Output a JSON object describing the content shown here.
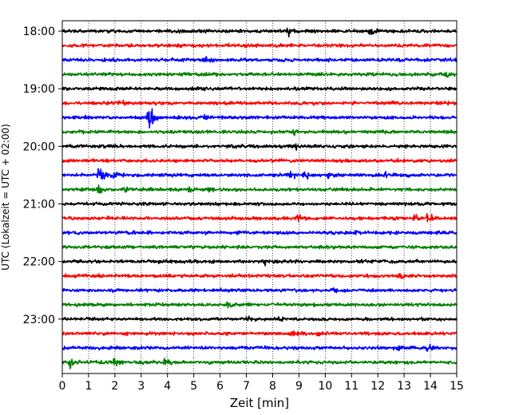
{
  "chart_data": {
    "type": "line",
    "title": "",
    "xlabel": "Zeit  [min]",
    "ylabel": "UTC (Lokalzeit = UTC + 02:00)",
    "xlim": [
      0,
      15
    ],
    "x_ticks": [
      "0",
      "1",
      "2",
      "3",
      "4",
      "5",
      "6",
      "7",
      "8",
      "9",
      "10",
      "11",
      "12",
      "13",
      "14",
      "15"
    ],
    "y_tick_labels": [
      "18:00",
      "19:00",
      "20:00",
      "21:00",
      "22:00",
      "23:00"
    ],
    "grid": "vertical dotted",
    "trace_interval_minutes": 15,
    "start_time": "18:00",
    "trace_colors": [
      "#000000",
      "#ff0000",
      "#0000ff",
      "#008000"
    ],
    "traces": [
      {
        "start": "18:00",
        "color": "#000000",
        "amplitude": 0.35,
        "events": [
          {
            "t": 8.6,
            "amp": 1.2
          },
          {
            "t": 11.7,
            "amp": 1.0
          }
        ]
      },
      {
        "start": "18:15",
        "color": "#ff0000",
        "amplitude": 0.35,
        "events": []
      },
      {
        "start": "18:30",
        "color": "#0000ff",
        "amplitude": 0.35,
        "events": [
          {
            "t": 5.4,
            "amp": 0.8
          }
        ]
      },
      {
        "start": "18:45",
        "color": "#008000",
        "amplitude": 0.35,
        "events": [
          {
            "t": 14.6,
            "amp": 0.6
          }
        ]
      },
      {
        "start": "19:00",
        "color": "#000000",
        "amplitude": 0.35,
        "events": []
      },
      {
        "start": "19:15",
        "color": "#ff0000",
        "amplitude": 0.35,
        "events": [
          {
            "t": 2.1,
            "amp": 0.7
          }
        ]
      },
      {
        "start": "19:30",
        "color": "#0000ff",
        "amplitude": 0.35,
        "events": [
          {
            "t": 3.3,
            "amp": 4.0
          },
          {
            "t": 5.4,
            "amp": 0.6
          }
        ]
      },
      {
        "start": "19:45",
        "color": "#008000",
        "amplitude": 0.35,
        "events": [
          {
            "t": 8.8,
            "amp": 0.6
          }
        ]
      },
      {
        "start": "20:00",
        "color": "#000000",
        "amplitude": 0.35,
        "events": [
          {
            "t": 8.9,
            "amp": 0.8
          }
        ]
      },
      {
        "start": "20:15",
        "color": "#ff0000",
        "amplitude": 0.35,
        "events": []
      },
      {
        "start": "20:30",
        "color": "#0000ff",
        "amplitude": 0.35,
        "events": [
          {
            "t": 1.4,
            "amp": 2.8
          },
          {
            "t": 1.9,
            "amp": 1.2
          },
          {
            "t": 8.7,
            "amp": 0.9
          },
          {
            "t": 9.2,
            "amp": 1.3
          },
          {
            "t": 10.1,
            "amp": 1.0
          },
          {
            "t": 12.3,
            "amp": 0.8
          }
        ]
      },
      {
        "start": "20:45",
        "color": "#008000",
        "amplitude": 0.35,
        "events": [
          {
            "t": 1.4,
            "amp": 1.4
          },
          {
            "t": 2.4,
            "amp": 0.8
          },
          {
            "t": 4.8,
            "amp": 0.8
          },
          {
            "t": 5.6,
            "amp": 0.6
          }
        ]
      },
      {
        "start": "21:00",
        "color": "#000000",
        "amplitude": 0.35,
        "events": []
      },
      {
        "start": "21:15",
        "color": "#ff0000",
        "amplitude": 0.35,
        "events": [
          {
            "t": 8.9,
            "amp": 1.5
          },
          {
            "t": 13.9,
            "amp": 1.4
          },
          {
            "t": 13.4,
            "amp": 0.6
          }
        ]
      },
      {
        "start": "21:30",
        "color": "#0000ff",
        "amplitude": 0.35,
        "events": [
          {
            "t": 11.1,
            "amp": 0.6
          }
        ]
      },
      {
        "start": "21:45",
        "color": "#008000",
        "amplitude": 0.35,
        "events": []
      },
      {
        "start": "22:00",
        "color": "#000000",
        "amplitude": 0.35,
        "events": [
          {
            "t": 7.7,
            "amp": 1.0
          }
        ]
      },
      {
        "start": "22:15",
        "color": "#ff0000",
        "amplitude": 0.35,
        "events": [
          {
            "t": 12.8,
            "amp": 1.0
          }
        ]
      },
      {
        "start": "22:30",
        "color": "#0000ff",
        "amplitude": 0.35,
        "events": [
          {
            "t": 10.3,
            "amp": 0.5
          }
        ]
      },
      {
        "start": "22:45",
        "color": "#008000",
        "amplitude": 0.35,
        "events": [
          {
            "t": 6.3,
            "amp": 0.5
          }
        ]
      },
      {
        "start": "23:00",
        "color": "#000000",
        "amplitude": 0.35,
        "events": [
          {
            "t": 7.1,
            "amp": 0.5
          },
          {
            "t": 8.3,
            "amp": 0.5
          }
        ]
      },
      {
        "start": "23:15",
        "color": "#ff0000",
        "amplitude": 0.35,
        "events": [
          {
            "t": 8.7,
            "amp": 0.7
          },
          {
            "t": 9.7,
            "amp": 0.8
          }
        ]
      },
      {
        "start": "23:30",
        "color": "#0000ff",
        "amplitude": 0.35,
        "events": [
          {
            "t": 12.8,
            "amp": 0.6
          },
          {
            "t": 13.9,
            "amp": 1.3
          }
        ]
      },
      {
        "start": "23:45",
        "color": "#008000",
        "amplitude": 0.35,
        "events": [
          {
            "t": 0.3,
            "amp": 1.3
          },
          {
            "t": 2.0,
            "amp": 1.5
          },
          {
            "t": 3.9,
            "amp": 0.8
          }
        ]
      }
    ]
  }
}
